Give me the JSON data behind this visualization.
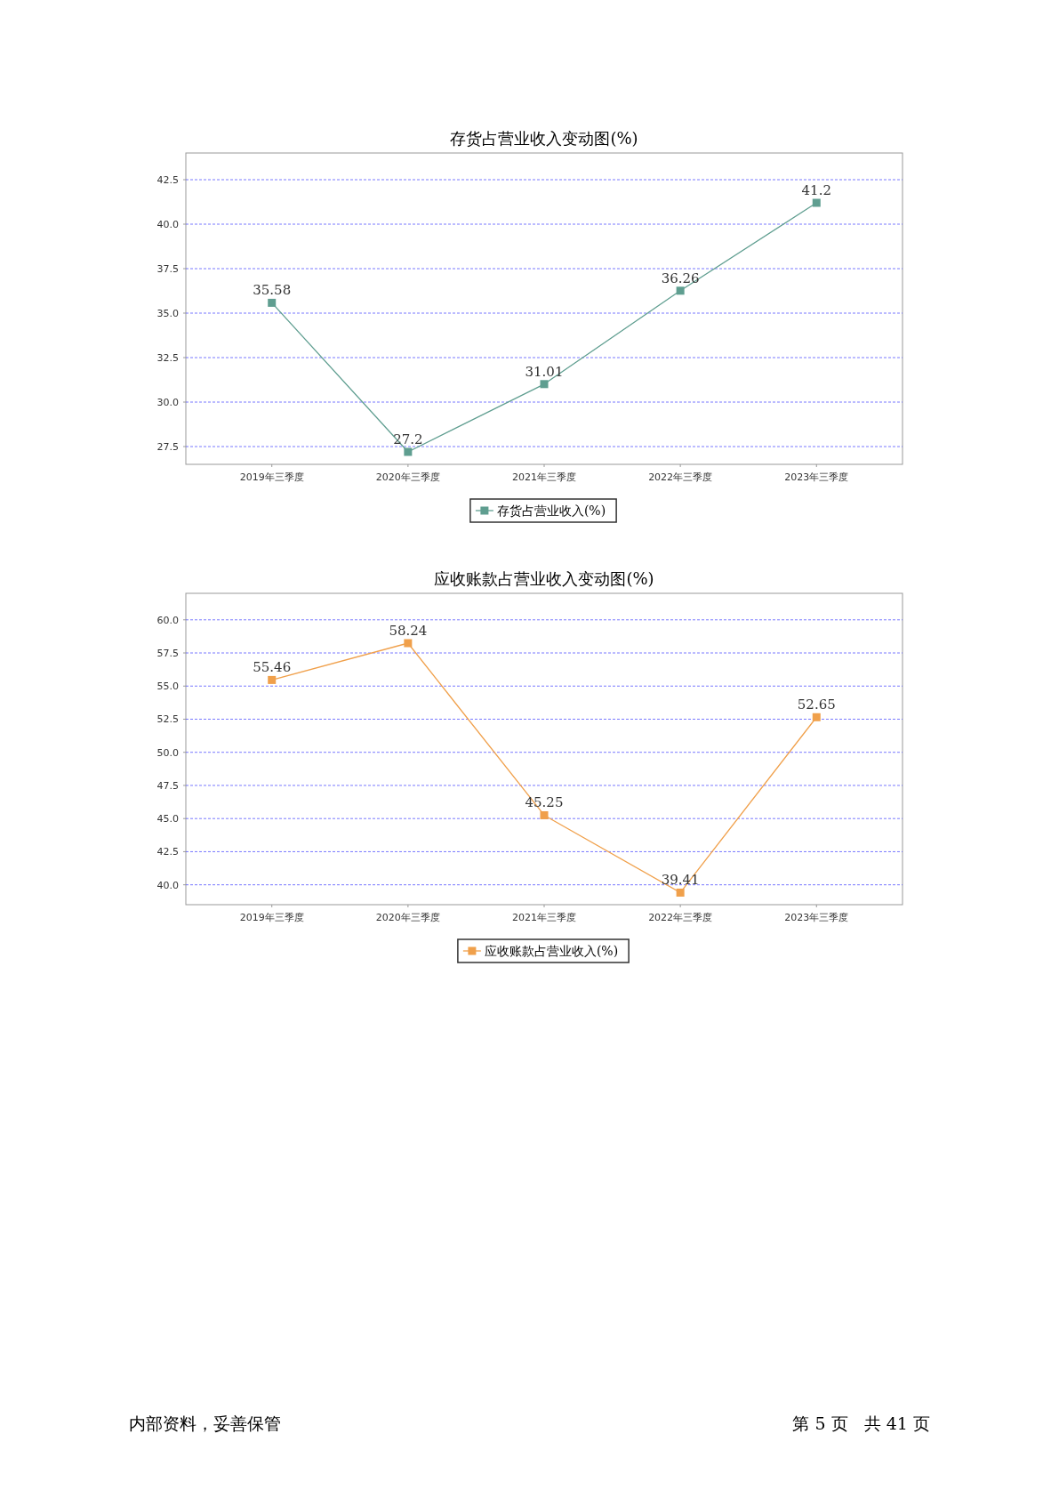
{
  "chart_data": [
    {
      "type": "line",
      "title": "存货占营业收入变动图(%)",
      "categories": [
        "2019年三季度",
        "2020年三季度",
        "2021年三季度",
        "2022年三季度",
        "2023年三季度"
      ],
      "series": [
        {
          "name": "存货占营业收入(%)",
          "color": "#5f9e90",
          "values": [
            35.58,
            27.2,
            31.01,
            36.26,
            41.2
          ]
        }
      ],
      "ylim": [
        26.5,
        44.0
      ],
      "yticks": [
        {
          "value": 27.5,
          "label": "27.5"
        },
        {
          "value": 30,
          "label": "30.0"
        },
        {
          "value": 32.5,
          "label": "32.5"
        },
        {
          "value": 35,
          "label": "35.0"
        },
        {
          "value": 37.5,
          "label": "37.5"
        },
        {
          "value": 40,
          "label": "40.0"
        },
        {
          "value": 42.5,
          "label": "42.5"
        }
      ],
      "grid": "y",
      "legend": "bottom",
      "marker": "square",
      "data_labels": true
    },
    {
      "type": "line",
      "title": "应收账款占营业收入变动图(%)",
      "categories": [
        "2019年三季度",
        "2020年三季度",
        "2021年三季度",
        "2022年三季度",
        "2023年三季度"
      ],
      "series": [
        {
          "name": "应收账款占营业收入(%)",
          "color": "#f0a04b",
          "values": [
            55.46,
            58.24,
            45.25,
            39.41,
            52.65
          ]
        }
      ],
      "ylim": [
        38.5,
        62.0
      ],
      "yticks": [
        {
          "value": 40,
          "label": "40.0"
        },
        {
          "value": 42.5,
          "label": "42.5"
        },
        {
          "value": 45,
          "label": "45.0"
        },
        {
          "value": 47.5,
          "label": "47.5"
        },
        {
          "value": 50,
          "label": "50.0"
        },
        {
          "value": 52.5,
          "label": "52.5"
        },
        {
          "value": 55,
          "label": "55.0"
        },
        {
          "value": 57.5,
          "label": "57.5"
        },
        {
          "value": 60,
          "label": "60.0"
        }
      ],
      "grid": "y",
      "legend": "bottom",
      "marker": "square",
      "data_labels": true,
      "annotations": [
        "内部资料，妥善保管",
        "第 5 页   共 41 页"
      ]
    }
  ]
}
